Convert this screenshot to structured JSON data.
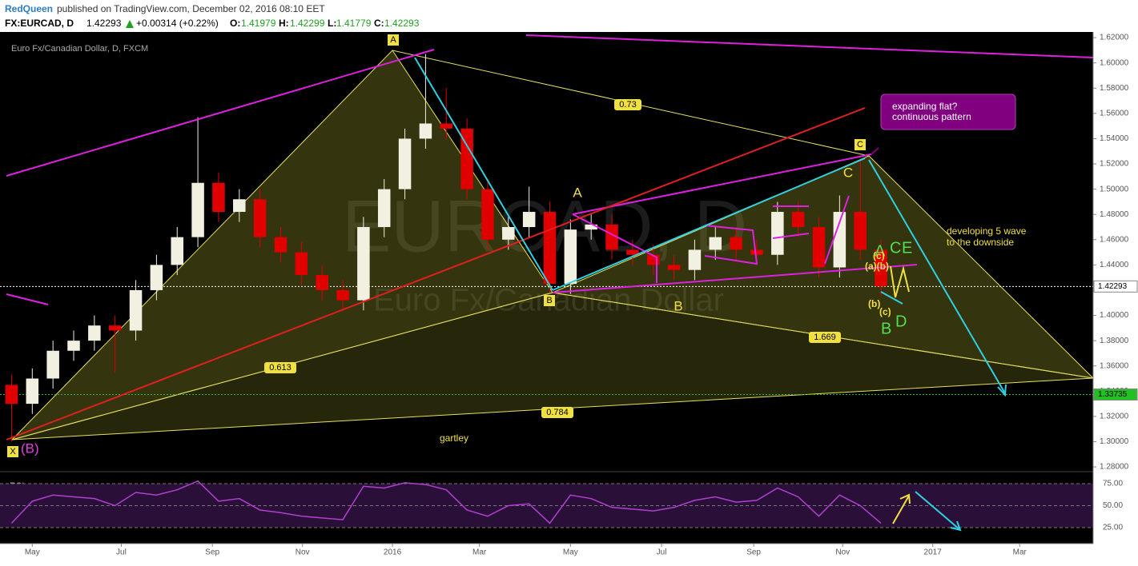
{
  "header": {
    "author": "RedQueen",
    "published": "published on TradingView.com, December 02, 2016 08:10 EET",
    "symbol": "FX:EURCAD, D",
    "last": "1.42293",
    "change": "+0.00314 (+0.22%)",
    "o_label": "O:",
    "o": "1.41979",
    "h_label": "H:",
    "h": "1.42299",
    "l_label": "L:",
    "l": "1.41779",
    "c_label": "C:",
    "c": "1.42293"
  },
  "chart_data": [
    {
      "type": "candlestick",
      "title": "Euro Fx/Canadian Dollar, D, FXCM",
      "watermark": "EURCAD, D",
      "watermark_sub": "Euro Fx/Canadian Dollar",
      "up_color": "#f2f0e0",
      "down_color": "#e00000",
      "x": [
        0,
        2,
        4,
        6,
        8,
        10,
        12,
        14,
        16,
        18,
        20,
        22,
        24,
        26,
        28,
        30,
        32,
        34,
        36,
        38,
        40,
        42,
        44,
        46,
        48,
        50,
        52,
        54,
        56,
        58,
        60,
        62,
        64,
        66,
        68,
        70,
        72,
        74,
        76,
        78,
        80,
        82,
        84
      ],
      "open": [
        1.345,
        1.33,
        1.35,
        1.372,
        1.38,
        1.392,
        1.388,
        1.42,
        1.44,
        1.462,
        1.505,
        1.482,
        1.492,
        1.462,
        1.45,
        1.432,
        1.42,
        1.412,
        1.47,
        1.5,
        1.54,
        1.552,
        1.548,
        1.5,
        1.46,
        1.47,
        1.482,
        1.425,
        1.468,
        1.472,
        1.452,
        1.448,
        1.44,
        1.436,
        1.452,
        1.462,
        1.452,
        1.448,
        1.482,
        1.47,
        1.438,
        1.482,
        1.452
      ],
      "high": [
        1.353,
        1.358,
        1.38,
        1.388,
        1.4,
        1.4,
        1.428,
        1.448,
        1.47,
        1.557,
        1.513,
        1.5,
        1.5,
        1.47,
        1.458,
        1.44,
        1.428,
        1.478,
        1.508,
        1.548,
        1.607,
        1.58,
        1.556,
        1.508,
        1.478,
        1.502,
        1.49,
        1.476,
        1.48,
        1.48,
        1.46,
        1.456,
        1.448,
        1.46,
        1.47,
        1.47,
        1.46,
        1.49,
        1.49,
        1.478,
        1.495,
        1.523,
        1.46
      ],
      "low": [
        1.3,
        1.322,
        1.342,
        1.364,
        1.372,
        1.355,
        1.38,
        1.412,
        1.432,
        1.454,
        1.474,
        1.474,
        1.454,
        1.442,
        1.424,
        1.412,
        1.403,
        1.404,
        1.462,
        1.492,
        1.532,
        1.54,
        1.492,
        1.452,
        1.452,
        1.462,
        1.418,
        1.417,
        1.46,
        1.444,
        1.44,
        1.432,
        1.428,
        1.428,
        1.444,
        1.444,
        1.44,
        1.44,
        1.462,
        1.43,
        1.43,
        1.444,
        1.415
      ],
      "close": [
        1.33,
        1.35,
        1.372,
        1.38,
        1.392,
        1.388,
        1.42,
        1.44,
        1.462,
        1.505,
        1.482,
        1.492,
        1.462,
        1.45,
        1.432,
        1.42,
        1.412,
        1.47,
        1.5,
        1.54,
        1.552,
        1.548,
        1.5,
        1.46,
        1.47,
        1.482,
        1.425,
        1.468,
        1.472,
        1.452,
        1.448,
        1.44,
        1.436,
        1.452,
        1.462,
        1.452,
        1.448,
        1.482,
        1.47,
        1.438,
        1.482,
        1.452,
        1.423
      ],
      "xlim": [
        -0.5,
        104.5
      ],
      "xticks": [
        {
          "value": 2,
          "label": "May"
        },
        {
          "value": 10.6,
          "label": "Jul"
        },
        {
          "value": 19.4,
          "label": "Sep"
        },
        {
          "value": 28.1,
          "label": "Nov"
        },
        {
          "value": 36.8,
          "label": "2016"
        },
        {
          "value": 45.2,
          "label": "Mar"
        },
        {
          "value": 54,
          "label": "May"
        },
        {
          "value": 62.8,
          "label": "Jul"
        },
        {
          "value": 71.7,
          "label": "Sep"
        },
        {
          "value": 80.3,
          "label": "Nov"
        },
        {
          "value": 89,
          "label": "2017"
        },
        {
          "value": 97.4,
          "label": "Mar"
        }
      ],
      "ylim": [
        1.2775,
        1.6245
      ],
      "yticks": [
        {
          "value": 1.28,
          "label": "1.28000"
        },
        {
          "value": 1.3,
          "label": "1.30000"
        },
        {
          "value": 1.32,
          "label": "1.32000"
        },
        {
          "value": 1.34,
          "label": "1.34000"
        },
        {
          "value": 1.36,
          "label": "1.36000"
        },
        {
          "value": 1.38,
          "label": "1.38000"
        },
        {
          "value": 1.4,
          "label": "1.40000"
        },
        {
          "value": 1.42,
          "label": "1.42000"
        },
        {
          "value": 1.44,
          "label": "1.44000"
        },
        {
          "value": 1.46,
          "label": "1.46000"
        },
        {
          "value": 1.48,
          "label": "1.48000"
        },
        {
          "value": 1.5,
          "label": "1.50000"
        },
        {
          "value": 1.52,
          "label": "1.52000"
        },
        {
          "value": 1.54,
          "label": "1.54000"
        },
        {
          "value": 1.56,
          "label": "1.56000"
        },
        {
          "value": 1.58,
          "label": "1.58000"
        },
        {
          "value": 1.6,
          "label": "1.60000"
        },
        {
          "value": 1.62,
          "label": "1.62000"
        }
      ],
      "price_markers": [
        {
          "value": 1.42293,
          "label": "1.42293",
          "color": "#ffffff"
        },
        {
          "value": 1.33735,
          "label": "1.33735",
          "color": "#22c022"
        }
      ],
      "annotations": [
        "A",
        "X",
        "(B)",
        "B",
        "C",
        "0.73",
        "0.613",
        "0.784",
        "1.669",
        "gartley",
        "A",
        "B",
        "C",
        "developing 5 wave",
        "to the downside",
        "expanding flat?",
        "continuous pattern",
        "A",
        "C",
        "E",
        "B",
        "D",
        "(c)",
        "(a)(b)",
        "(b)",
        "(c)"
      ]
    },
    {
      "type": "line",
      "name": "RSI",
      "color": "#b040d0",
      "x": [
        0,
        2,
        4,
        6,
        8,
        10,
        12,
        14,
        16,
        18,
        20,
        22,
        24,
        26,
        28,
        30,
        32,
        34,
        36,
        38,
        40,
        42,
        44,
        46,
        48,
        50,
        52,
        54,
        56,
        58,
        60,
        62,
        64,
        66,
        68,
        70,
        72,
        74,
        76,
        78,
        80,
        82,
        84
      ],
      "values": [
        30,
        55,
        62,
        60,
        58,
        50,
        65,
        62,
        68,
        78,
        55,
        58,
        45,
        42,
        38,
        36,
        34,
        72,
        70,
        76,
        74,
        68,
        45,
        38,
        50,
        52,
        30,
        62,
        58,
        48,
        46,
        44,
        48,
        56,
        60,
        54,
        56,
        70,
        60,
        38,
        62,
        50,
        30
      ],
      "ylim": [
        8.6,
        86.8
      ],
      "yticks": [
        {
          "value": 25,
          "label": "25.00"
        },
        {
          "value": 50,
          "label": "50.00"
        },
        {
          "value": 75,
          "label": "75.00"
        }
      ]
    }
  ]
}
